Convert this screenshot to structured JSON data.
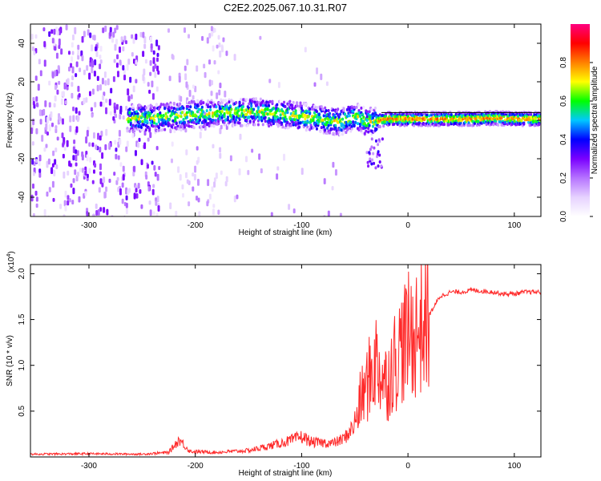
{
  "chart_data": [
    {
      "type": "heatmap",
      "title": "C2E2.2025.067.10.31.R07",
      "xlabel": "Height of straight line (km)",
      "ylabel": "Frequency (Hz)",
      "xlim": [
        -355,
        125
      ],
      "ylim": [
        -50,
        50
      ],
      "xticks": [
        -300,
        -200,
        -100,
        0,
        100
      ],
      "yticks": [
        -40,
        -20,
        0,
        20,
        40
      ],
      "colorbar": {
        "label": "Normalized spectral amplitude",
        "range": [
          0,
          1
        ],
        "ticks": [
          "0.0",
          "0.2",
          "0.4",
          "0.6",
          "0.8"
        ],
        "colors": [
          "#ffffff",
          "#e6d2ff",
          "#b673ff",
          "#7a00ff",
          "#0000ff",
          "#00c8ff",
          "#00ff00",
          "#ffff00",
          "#ff8000",
          "#ff0000",
          "#ff0080"
        ]
      },
      "ridge": {
        "x": [
          -265,
          -240,
          -220,
          -200,
          -180,
          -160,
          -140,
          -120,
          -100,
          -80,
          -65,
          -50,
          -40,
          -30,
          -20,
          0,
          20,
          40,
          60,
          80,
          100,
          125
        ],
        "y": [
          2,
          2,
          3,
          4,
          4.5,
          5,
          5,
          4,
          3,
          1,
          0,
          3,
          0,
          0.5,
          1.5,
          1.5,
          1.5,
          1.5,
          1.5,
          2,
          1.5,
          1.5
        ]
      }
    },
    {
      "type": "line",
      "xlabel": "Height of straight line (km)",
      "ylabel": "SNR (10 * v/v)",
      "ylabel_multiplier": "(x10",
      "ylabel_exponent": "4",
      "ylabel_suffix": ")",
      "xlim": [
        -355,
        125
      ],
      "ylim": [
        0,
        21000
      ],
      "xticks": [
        -300,
        -200,
        -100,
        0,
        100
      ],
      "yticks": [
        5000,
        10000,
        15000,
        20000
      ],
      "ytick_labels": [
        "0.5",
        "1.0",
        "1.5",
        "2.0"
      ],
      "color": "#ff2a2a",
      "series": [
        {
          "name": "SNR",
          "x": [
            -355,
            -300,
            -250,
            -225,
            -215,
            -205,
            -180,
            -150,
            -130,
            -110,
            -100,
            -90,
            -70,
            -60,
            -50,
            -45,
            -40,
            -35,
            -30,
            -25,
            -20,
            -15,
            -10,
            -5,
            0,
            5,
            10,
            15,
            20,
            25,
            30,
            40,
            50,
            60,
            80,
            90,
            100,
            110,
            125
          ],
          "y": [
            300,
            350,
            300,
            500,
            1900,
            600,
            500,
            700,
            1200,
            1800,
            2200,
            1600,
            1500,
            2000,
            3500,
            6000,
            7500,
            9000,
            10500,
            9000,
            8000,
            10000,
            11000,
            12500,
            13000,
            13500,
            14000,
            14500,
            15500,
            16500,
            17500,
            18000,
            18000,
            18200,
            18000,
            17800,
            17800,
            18000,
            18000
          ]
        }
      ]
    }
  ]
}
